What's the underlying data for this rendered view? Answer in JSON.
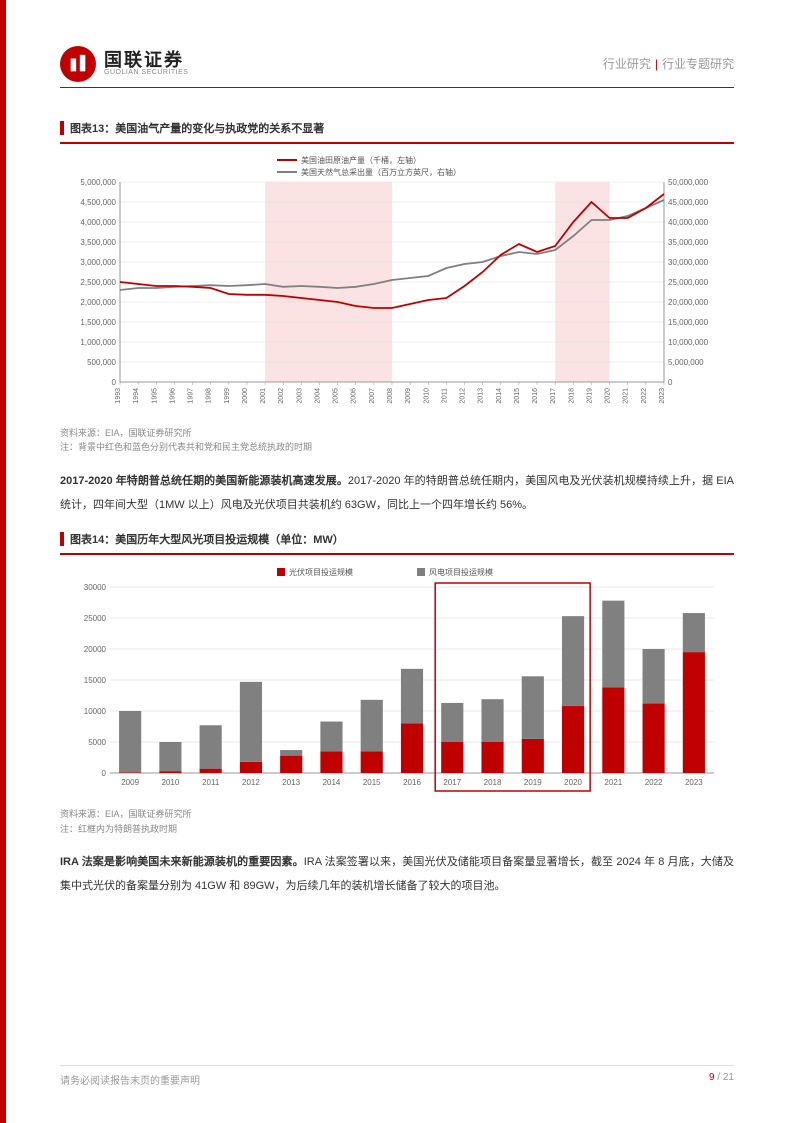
{
  "header": {
    "logo_cn": "国联证券",
    "logo_en": "GUOLIAN SECURITIES",
    "right_1": "行业研究",
    "right_2": "行业专题研究"
  },
  "chart13": {
    "title": "图表13：美国油气产量的变化与执政党的关系不显著",
    "type": "line",
    "legend": {
      "series1": "美国油田原油产量（千桶，左轴）",
      "series2": "美国天然气总采出量（百万立方英尺，右轴）"
    },
    "x_labels": [
      "1993",
      "1994",
      "1995",
      "1996",
      "1997",
      "1998",
      "1999",
      "2000",
      "2001",
      "2002",
      "2003",
      "2004",
      "2005",
      "2006",
      "2007",
      "2008",
      "2009",
      "2010",
      "2011",
      "2012",
      "2013",
      "2014",
      "2015",
      "2016",
      "2017",
      "2018",
      "2019",
      "2020",
      "2021",
      "2022",
      "2023"
    ],
    "left_axis": {
      "min": 0,
      "max": 5000000,
      "step": 500000
    },
    "right_axis": {
      "min": 0,
      "max": 50000000,
      "step": 5000000
    },
    "series1_values": [
      2500000,
      2450000,
      2400000,
      2400000,
      2380000,
      2350000,
      2200000,
      2180000,
      2180000,
      2150000,
      2100000,
      2050000,
      2000000,
      1900000,
      1850000,
      1850000,
      1950000,
      2050000,
      2100000,
      2400000,
      2750000,
      3180000,
      3450000,
      3250000,
      3400000,
      4000000,
      4500000,
      4100000,
      4100000,
      4350000,
      4700000
    ],
    "series2_values": [
      23000000,
      23500000,
      23500000,
      23800000,
      24000000,
      24200000,
      24000000,
      24200000,
      24500000,
      23800000,
      24000000,
      23800000,
      23500000,
      23800000,
      24500000,
      25500000,
      26000000,
      26500000,
      28500000,
      29500000,
      30000000,
      31500000,
      32500000,
      32000000,
      33000000,
      36500000,
      40500000,
      40500000,
      41500000,
      43500000,
      45500000
    ],
    "series1_color": "#c00000",
    "series2_color": "#808080",
    "shaded_regions": [
      {
        "start": "2001",
        "end": "2008",
        "color": "#f8d0d0"
      },
      {
        "start": "2017",
        "end": "2020",
        "color": "#f8d0d0"
      }
    ],
    "grid_color": "#e0e0e0",
    "background_color": "#ffffff",
    "source": "资料来源：EIA，国联证券研究所",
    "note": "注：背景中红色和蓝色分别代表共和党和民主党总统执政的时期"
  },
  "para1": {
    "bold": "2017-2020 年特朗普总统任期的美国新能源装机高速发展。",
    "rest": "2017-2020 年的特朗普总统任期内，美国风电及光伏装机规模持续上升，据 EIA 统计，四年间大型（1MW 以上）风电及光伏项目共装机约 63GW，同比上一个四年增长约 56%。"
  },
  "chart14": {
    "title": "图表14：美国历年大型风光项目投运规模（单位：MW）",
    "type": "stacked-bar",
    "legend": {
      "pv": "光伏项目投运规模",
      "wind": "风电项目投运规模"
    },
    "x_labels": [
      "2009",
      "2010",
      "2011",
      "2012",
      "2013",
      "2014",
      "2015",
      "2016",
      "2017",
      "2018",
      "2019",
      "2020",
      "2021",
      "2022",
      "2023"
    ],
    "y_axis": {
      "min": 0,
      "max": 30000,
      "step": 5000
    },
    "pv_values": [
      100,
      300,
      700,
      1800,
      2800,
      3500,
      3500,
      8000,
      5000,
      5000,
      5500,
      10800,
      13800,
      11200,
      19500
    ],
    "wind_values": [
      9900,
      4700,
      7000,
      12900,
      900,
      4800,
      8300,
      8800,
      6300,
      6900,
      10100,
      14500,
      14000,
      8800,
      6300
    ],
    "pv_color": "#c00000",
    "wind_color": "#808080",
    "highlight_box": {
      "start": "2017",
      "end": "2020",
      "color": "#c00000"
    },
    "grid_color": "#d0d0d0",
    "background_color": "#ffffff",
    "source": "资料来源：EIA，国联证券研究所",
    "note": "注：红框内为特朗普执政时期"
  },
  "para2": {
    "bold": "IRA 法案是影响美国未来新能源装机的重要因素。",
    "rest": "IRA 法案签署以来，美国光伏及储能项目备案量显著增长，截至 2024 年 8 月底，大储及集中式光伏的备案量分别为 41GW 和 89GW，为后续几年的装机增长储备了较大的项目池。"
  },
  "footer": {
    "disclaimer": "请务必阅读报告末页的重要声明",
    "page_current": "9",
    "page_sep": " / ",
    "page_total": "21"
  }
}
